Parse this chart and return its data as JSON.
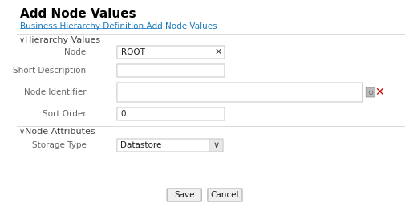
{
  "title": "Add Node Values",
  "breadcrumb": "Business Hierarchy Definition.Add Node Values",
  "breadcrumb_color": "#1a7abf",
  "section1": "Hierarchy Values",
  "section2": "Node Attributes",
  "fields": [
    {
      "label": "Node",
      "value": "ROOT",
      "has_x": true,
      "row": 0
    },
    {
      "label": "Short Description",
      "value": "",
      "has_x": false,
      "row": 1
    },
    {
      "label": "Node Identifier",
      "value": "",
      "has_x": false,
      "has_icons": true,
      "row": 2
    },
    {
      "label": "Sort Order",
      "value": "0",
      "has_x": false,
      "row": 3
    }
  ],
  "attr_fields": [
    {
      "label": "Storage Type",
      "value": "Datastore",
      "is_dropdown": true
    }
  ],
  "buttons": [
    "Save",
    "Cancel"
  ],
  "bg_color": "#ffffff",
  "label_color": "#666666",
  "border_color": "#cccccc",
  "section_color": "#444444",
  "input_bg": "#ffffff",
  "title_color": "#000000",
  "button_bg": "#f0f0f0",
  "button_border": "#aaaaaa",
  "section_line_color": "#cccccc"
}
